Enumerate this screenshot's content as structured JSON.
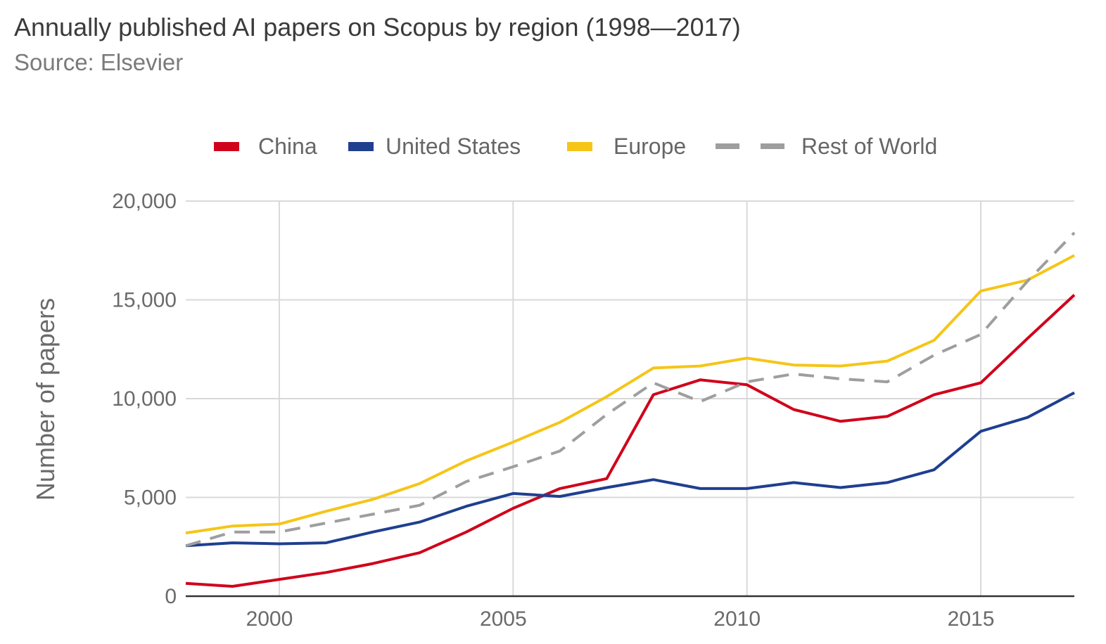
{
  "header": {
    "title": "Annually published AI papers on Scopus by region (1998—2017)",
    "subtitle": "Source: Elsevier"
  },
  "chart_data": {
    "type": "line",
    "title": "Annually published AI papers on Scopus by region (1998—2017)",
    "subtitle": "Source: Elsevier",
    "xlabel": "",
    "ylabel": "Number of papers",
    "x": [
      1998,
      1999,
      2000,
      2001,
      2002,
      2003,
      2004,
      2005,
      2006,
      2007,
      2008,
      2009,
      2010,
      2011,
      2012,
      2013,
      2014,
      2015,
      2016,
      2017
    ],
    "xlim": [
      1998,
      2017
    ],
    "ylim": [
      0,
      20000
    ],
    "x_ticks": [
      2000,
      2005,
      2010,
      2015
    ],
    "y_ticks": [
      0,
      5000,
      10000,
      15000,
      20000
    ],
    "x_tick_labels": [
      "2000",
      "2005",
      "2010",
      "2015"
    ],
    "y_tick_labels": [
      "0",
      "5,000",
      "10,000",
      "15,000",
      "20,000"
    ],
    "grid": true,
    "legend_position": "top",
    "series": [
      {
        "name": "China",
        "color": "#d0021b",
        "dash": "solid",
        "values": [
          650,
          500,
          850,
          1200,
          1650,
          2200,
          3250,
          4450,
          5450,
          5950,
          10200,
          10950,
          10700,
          9450,
          8850,
          9100,
          10200,
          10800,
          13050,
          15250
        ]
      },
      {
        "name": "United States",
        "color": "#1f3f8f",
        "dash": "solid",
        "values": [
          2550,
          2700,
          2650,
          2700,
          3250,
          3750,
          4550,
          5200,
          5050,
          5500,
          5900,
          5450,
          5450,
          5750,
          5500,
          5750,
          6400,
          8350,
          9050,
          10300
        ]
      },
      {
        "name": "Europe",
        "color": "#f5c518",
        "dash": "solid",
        "values": [
          3200,
          3550,
          3650,
          4300,
          4900,
          5700,
          6850,
          7800,
          8800,
          10100,
          11550,
          11650,
          12050,
          11700,
          11650,
          11900,
          12950,
          15450,
          16000,
          17250
        ]
      },
      {
        "name": "Rest of World",
        "color": "#9e9e9e",
        "dash": "dashed",
        "values": [
          2550,
          3250,
          3250,
          3700,
          4150,
          4600,
          5800,
          6550,
          7350,
          9200,
          10800,
          9850,
          10850,
          11250,
          11000,
          10850,
          12200,
          13250,
          15950,
          18400
        ]
      }
    ]
  }
}
